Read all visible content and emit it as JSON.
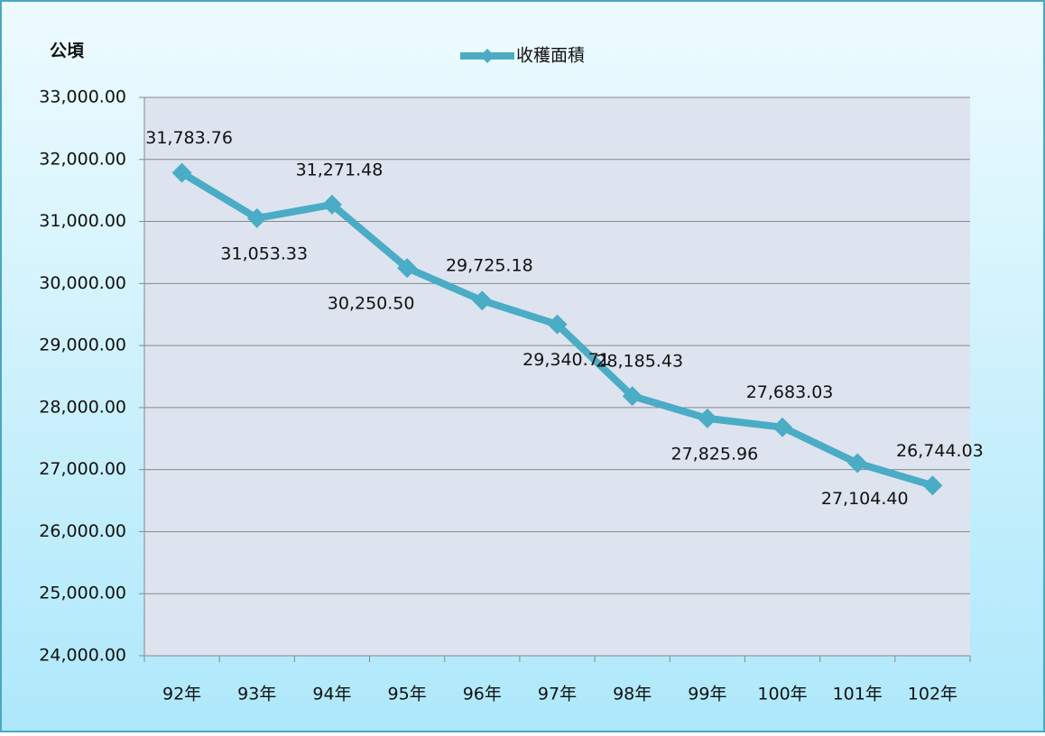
{
  "chart_data": {
    "type": "line",
    "y_label": "公頃",
    "categories": [
      "92年",
      "93年",
      "94年",
      "95年",
      "96年",
      "97年",
      "98年",
      "99年",
      "100年",
      "101年",
      "102年"
    ],
    "series": [
      {
        "name": "收穫面積",
        "color": "#4bacc6",
        "values": [
          31783.76,
          31053.33,
          31271.48,
          30250.5,
          29725.18,
          29340.71,
          28185.43,
          27825.96,
          27683.03,
          27104.4,
          26744.03
        ],
        "value_labels": [
          "31,783.76",
          "31,053.33",
          "31,271.48",
          "30,250.50",
          "29,725.18",
          "29,340.71",
          "28,185.43",
          "27,825.96",
          "27,683.03",
          "27,104.40",
          "26,744.03"
        ]
      }
    ],
    "ylim": [
      24000,
      33000
    ],
    "yticks": [
      {
        "value": 24000,
        "label": "24,000.00"
      },
      {
        "value": 25000,
        "label": "25,000.00"
      },
      {
        "value": 26000,
        "label": "26,000.00"
      },
      {
        "value": 27000,
        "label": "27,000.00"
      },
      {
        "value": 28000,
        "label": "28,000.00"
      },
      {
        "value": 29000,
        "label": "29,000.00"
      },
      {
        "value": 30000,
        "label": "30,000.00"
      },
      {
        "value": 31000,
        "label": "31,000.00"
      },
      {
        "value": 32000,
        "label": "32,000.00"
      },
      {
        "value": 33000,
        "label": "33,000.00"
      }
    ],
    "grid": true,
    "legend": "top"
  }
}
